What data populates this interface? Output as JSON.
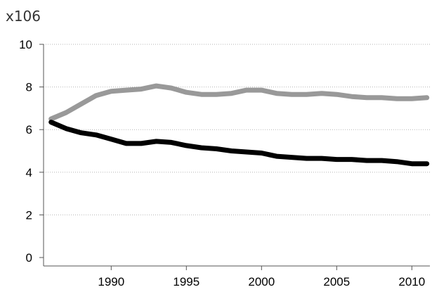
{
  "chart_data": {
    "type": "line",
    "title": "",
    "xlabel": "",
    "ylabel": "",
    "y_multiplier_label": "x106",
    "xlim": [
      1985.5,
      2011.2
    ],
    "ylim": [
      0,
      10
    ],
    "x_ticks": [
      1990,
      1995,
      2000,
      2005,
      2010
    ],
    "y_ticks": [
      0,
      2,
      4,
      6,
      8,
      10
    ],
    "x_tick_labels": [
      "1990",
      "1995",
      "2000",
      "2005",
      "2010"
    ],
    "y_tick_labels": [
      "0",
      "2",
      "4",
      "6",
      "8",
      "10"
    ],
    "grid": "horizontal dotted",
    "legend": "none",
    "series": [
      {
        "color": "#999999",
        "x": [
          1986,
          1987,
          1988,
          1989,
          1990,
          1991,
          1992,
          1993,
          1994,
          1995,
          1996,
          1997,
          1998,
          1999,
          2000,
          2001,
          2002,
          2003,
          2004,
          2005,
          2006,
          2007,
          2008,
          2009,
          2010,
          2011
        ],
        "values": [
          6.5,
          6.8,
          7.2,
          7.6,
          7.8,
          7.85,
          7.9,
          8.05,
          7.95,
          7.75,
          7.65,
          7.65,
          7.7,
          7.85,
          7.85,
          7.7,
          7.65,
          7.65,
          7.7,
          7.65,
          7.55,
          7.5,
          7.5,
          7.45,
          7.45,
          7.5
        ]
      },
      {
        "color": "#000000",
        "x": [
          1986,
          1987,
          1988,
          1989,
          1990,
          1991,
          1992,
          1993,
          1994,
          1995,
          1996,
          1997,
          1998,
          1999,
          2000,
          2001,
          2002,
          2003,
          2004,
          2005,
          2006,
          2007,
          2008,
          2009,
          2010,
          2011
        ],
        "values": [
          6.35,
          6.05,
          5.85,
          5.75,
          5.55,
          5.35,
          5.35,
          5.45,
          5.4,
          5.25,
          5.15,
          5.1,
          5.0,
          4.95,
          4.9,
          4.75,
          4.7,
          4.65,
          4.65,
          4.6,
          4.6,
          4.55,
          4.55,
          4.5,
          4.4,
          4.4
        ]
      }
    ]
  }
}
